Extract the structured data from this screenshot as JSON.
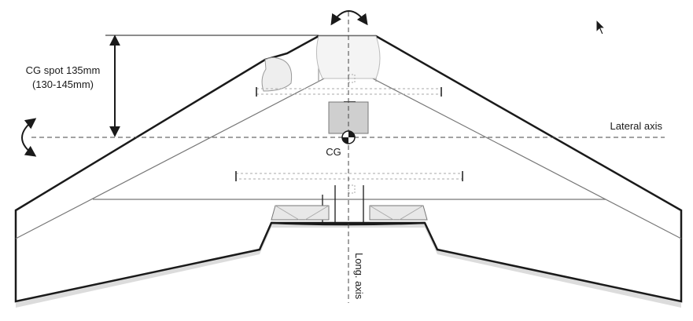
{
  "diagram": {
    "cg_spot_label": "CG spot 135mm",
    "cg_range_label": "(130-145mm)",
    "lateral_axis_label": "Lateral axis",
    "cg_label": "CG",
    "long_axis_label": "Long. axis"
  },
  "icons": {
    "pitch_rotation": "curved-double-arrow-icon",
    "yaw_rotation": "curved-double-arrow-icon",
    "cg_marker": "cg-target-icon",
    "cursor": "mouse-pointer-icon"
  },
  "colors": {
    "outline": "#1a1a1a",
    "wing_fill": "#ffffff",
    "shade": "#d8d8d8",
    "payload_box": "#cfcfcf"
  }
}
